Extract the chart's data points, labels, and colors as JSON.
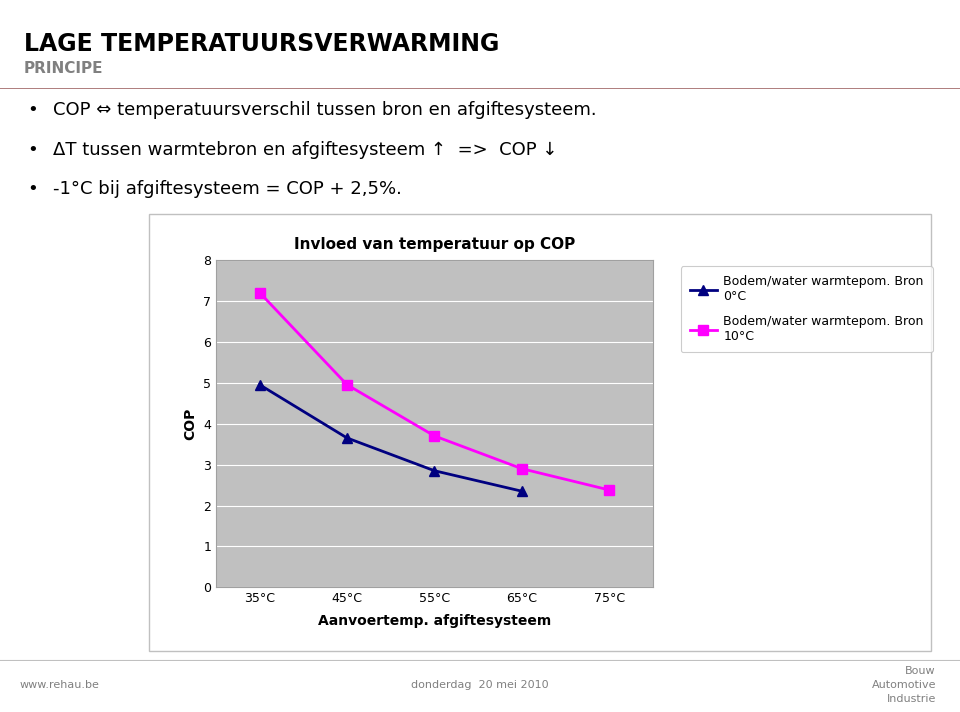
{
  "title_main": "LAGE TEMPERATUURSVERWARMING",
  "title_sub": "PRINCIPE",
  "bullet1": "COP ⇔ temperatuursverschil tussen bron en afgiftesysteem.",
  "bullet2": "ΔT tussen warmtebron en afgiftesysteem ↑  =>  COP ↓",
  "bullet3": "-1°C bij afgiftesysteem = COP + 2,5%.",
  "chart_title": "Invloed van temperatuur op COP",
  "xlabel": "Aanvoertemp. afgiftesysteem",
  "ylabel": "COP",
  "x_labels": [
    "35°C",
    "45°C",
    "55°C",
    "65°C",
    "75°C"
  ],
  "x_values": [
    35,
    45,
    55,
    65,
    75
  ],
  "y_ticks": [
    0,
    1,
    2,
    3,
    4,
    5,
    6,
    7,
    8
  ],
  "series1_values": [
    4.95,
    3.65,
    2.85,
    2.35
  ],
  "series2_values": [
    7.2,
    4.95,
    3.7,
    2.9,
    2.38
  ],
  "series1_color": "#000080",
  "series2_color": "#FF00FF",
  "series1_label": "Bodem/water warmtepom. Bron\n0°C",
  "series2_label": "Bodem/water warmtepom. Bron\n10°C",
  "chart_bg": "#C0C0C0",
  "footer_left": "www.rehau.be",
  "footer_center": "donderdag  20 mei 2010",
  "footer_right_1": "Bouw",
  "footer_right_2": "Automotive",
  "footer_right_3": "Industrie",
  "separator_color": "#B08080",
  "title_main_color": "#000000",
  "title_sub_color": "#808080"
}
